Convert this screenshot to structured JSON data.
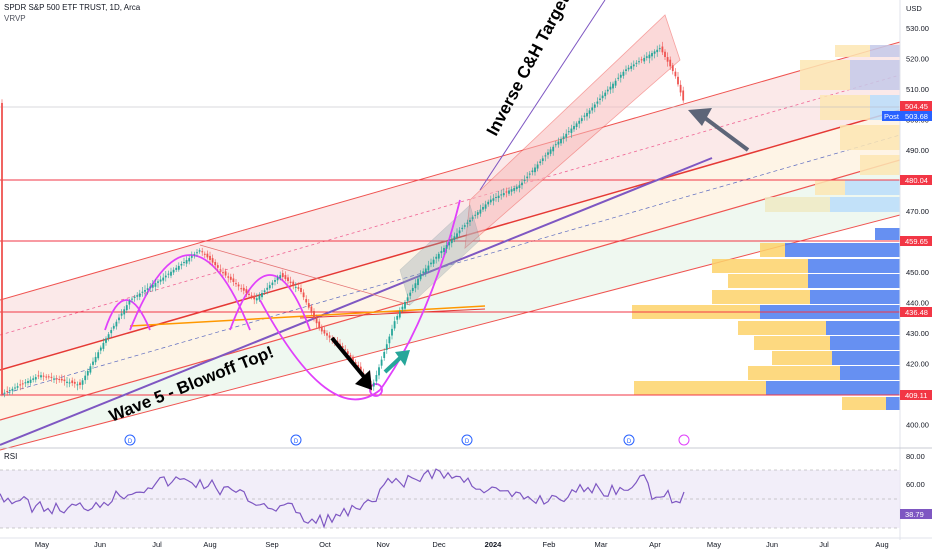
{
  "header": {
    "symbol_line": "SPDR S&P 500 ETF TRUST, 1D, Arca",
    "indicator": "VRVP"
  },
  "price_axis": {
    "currency": "USD",
    "ticks": [
      "530.00",
      "520.00",
      "510.00",
      "500.00",
      "490.00",
      "480.00",
      "470.00",
      "460.00",
      "450.00",
      "440.00",
      "430.00",
      "420.00",
      "410.00",
      "400.00"
    ],
    "tags": {
      "last": "504.45",
      "post": "503.68",
      "post_label": "Post",
      "level_480": "480.04",
      "level_459": "459.65",
      "level_436": "436.48",
      "level_409": "409.11"
    }
  },
  "time_axis": [
    "May",
    "Jun",
    "Jul",
    "Aug",
    "Sep",
    "Oct",
    "Nov",
    "Dec",
    "2024",
    "Feb",
    "Mar",
    "Apr",
    "May",
    "Jun",
    "Jul",
    "Aug"
  ],
  "annotations": {
    "wave5": "Wave 5 - Blowoff Top!",
    "inverse_ch": "Inverse C&H Target"
  },
  "dividend_marker": "D",
  "rsi": {
    "label": "RSI",
    "ticks": [
      "80.00",
      "60.00",
      "40.00"
    ],
    "value": "38.79"
  },
  "colors": {
    "up": "#26a69a",
    "down": "#ef5350",
    "magenta": "#e040fb",
    "purple": "#7e57c2",
    "red_line": "#f23645"
  }
}
